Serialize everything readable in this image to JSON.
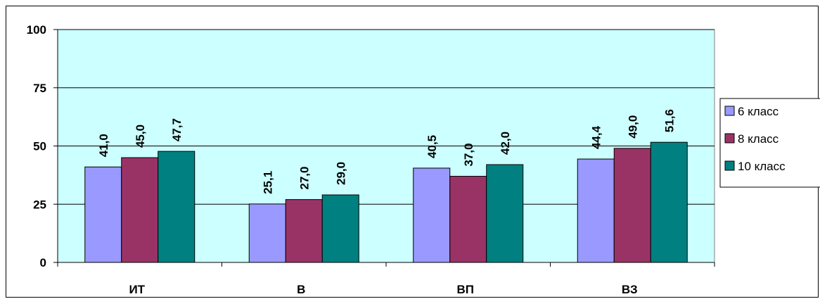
{
  "chart_data": {
    "type": "bar",
    "categories": [
      "ИТ",
      "В",
      "ВП",
      "ВЗ"
    ],
    "series": [
      {
        "name": "6 класс",
        "values": [
          41.0,
          25.1,
          40.5,
          44.4
        ],
        "color": "#9999ff",
        "labels": [
          "41,0",
          "25,1",
          "40,5",
          "44,4"
        ]
      },
      {
        "name": "8 класс",
        "values": [
          45.0,
          27.0,
          37.0,
          49.0
        ],
        "color": "#993366",
        "labels": [
          "45,0",
          "27,0",
          "37,0",
          "49,0"
        ]
      },
      {
        "name": "10 класс",
        "values": [
          47.7,
          29.0,
          42.0,
          51.6
        ],
        "color": "#008080",
        "labels": [
          "47,7",
          "29,0",
          "42,0",
          "51,6"
        ]
      }
    ],
    "yticks": [
      "0",
      "25",
      "50",
      "75",
      "100"
    ],
    "ylim": [
      0,
      100
    ],
    "grid": true,
    "plot_background": "#ccffff",
    "legend_position": "right"
  }
}
